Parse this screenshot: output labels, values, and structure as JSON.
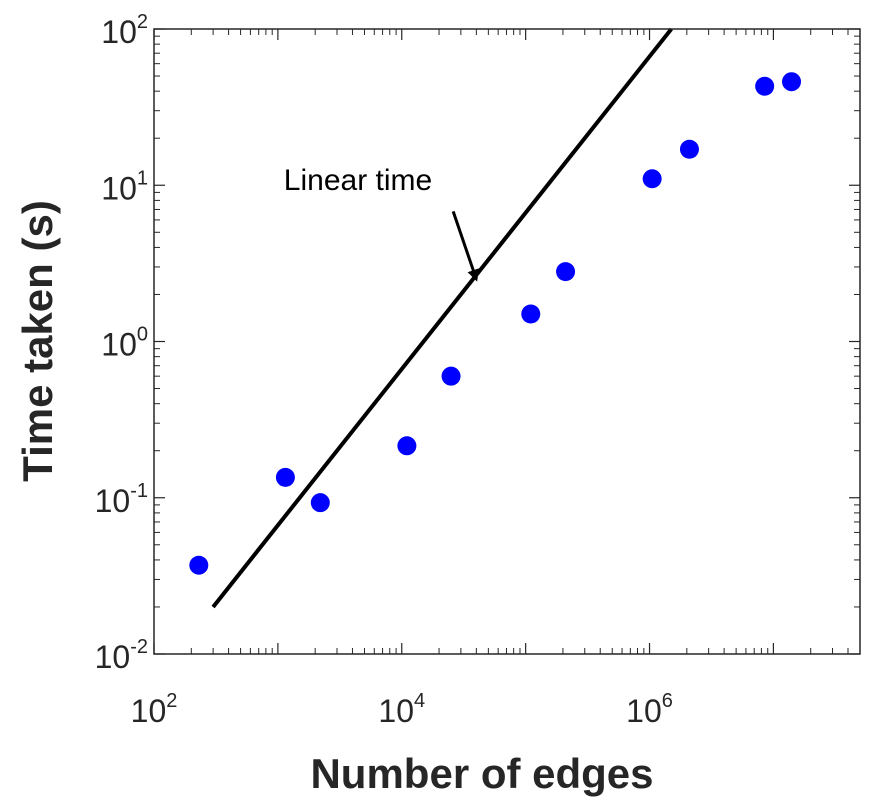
{
  "chart_data": {
    "type": "scatter",
    "title": "",
    "xlabel": "Number of edges",
    "ylabel": "Time taken (s)",
    "xscale": "log",
    "yscale": "log",
    "xlim": [
      100,
      50000000
    ],
    "ylim": [
      0.01,
      100
    ],
    "grid": false,
    "legend": "none",
    "x_ticks": [
      {
        "value": 100,
        "base": "10",
        "exp": "2"
      },
      {
        "value": 10000,
        "base": "10",
        "exp": "4"
      },
      {
        "value": 1000000,
        "base": "10",
        "exp": "6"
      }
    ],
    "y_ticks": [
      {
        "value": 0.01,
        "base": "10",
        "exp": "-2"
      },
      {
        "value": 0.1,
        "base": "10",
        "exp": "-1"
      },
      {
        "value": 1,
        "base": "10",
        "exp": "0"
      },
      {
        "value": 10,
        "base": "10",
        "exp": "1"
      },
      {
        "value": 100,
        "base": "10",
        "exp": "2"
      }
    ],
    "series": [
      {
        "marker_color": "#0000ff",
        "points": [
          {
            "x": 230,
            "y": 0.037
          },
          {
            "x": 1150,
            "y": 0.135
          },
          {
            "x": 2200,
            "y": 0.093
          },
          {
            "x": 11000,
            "y": 0.215
          },
          {
            "x": 25000,
            "y": 0.6
          },
          {
            "x": 110000,
            "y": 1.5
          },
          {
            "x": 210000,
            "y": 2.8
          },
          {
            "x": 1050000,
            "y": 11
          },
          {
            "x": 2100000,
            "y": 17
          },
          {
            "x": 8500000,
            "y": 43
          },
          {
            "x": 14000000,
            "y": 46
          }
        ]
      }
    ],
    "reference_line": {
      "color": "#000000",
      "points": [
        {
          "x": 300,
          "y": 0.02
        },
        {
          "x": 1500000,
          "y": 100
        }
      ]
    },
    "annotation": {
      "text": "Linear time",
      "arrow_target": {
        "x": 40000,
        "y": 2.5
      },
      "arrow_tail": {
        "x": 26000,
        "y": 6.8
      }
    }
  }
}
